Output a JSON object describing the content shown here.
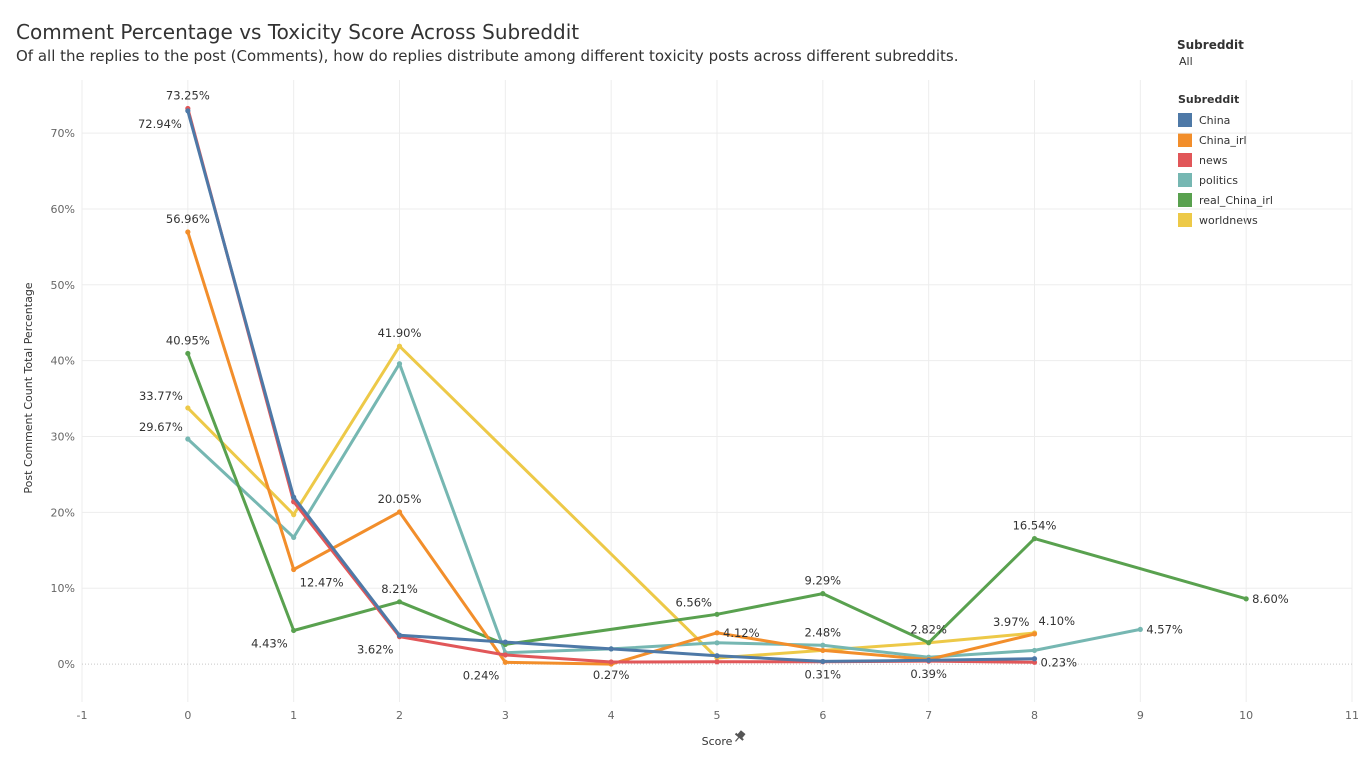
{
  "title": "Comment Percentage vs Toxicity Score Across Subreddit",
  "subtitle": "Of all the replies to the post (Comments), how do replies distribute among different toxicity posts across different subreddits.",
  "filter": {
    "title": "Subreddit",
    "value": "All"
  },
  "legend": {
    "title": "Subreddit",
    "items": [
      {
        "label": "China",
        "color": "#4e79a7"
      },
      {
        "label": "China_irl",
        "color": "#f28e2b"
      },
      {
        "label": "news",
        "color": "#e15759"
      },
      {
        "label": "politics",
        "color": "#76b7b2"
      },
      {
        "label": "real_China_irl",
        "color": "#59a14f"
      },
      {
        "label": "worldnews",
        "color": "#edc948"
      }
    ]
  },
  "chart_data": {
    "type": "line",
    "xlabel": "Score",
    "ylabel": "Post Comment Count Total Percentage",
    "xlim": [
      -1,
      11
    ],
    "ylim": [
      -5,
      77
    ],
    "x_ticks": [
      -1,
      0,
      1,
      2,
      3,
      4,
      5,
      6,
      7,
      8,
      9,
      10,
      11
    ],
    "y_ticks": [
      0,
      10,
      20,
      30,
      40,
      50,
      60,
      70
    ],
    "y_tick_labels": [
      "0%",
      "10%",
      "20%",
      "30%",
      "40%",
      "50%",
      "60%",
      "70%"
    ],
    "grid": true,
    "legend_position": "top-right",
    "series": [
      {
        "name": "worldnews",
        "color": "#edc948",
        "points": [
          [
            0,
            33.77
          ],
          [
            1,
            19.7
          ],
          [
            2,
            41.9
          ],
          [
            5,
            0.8
          ],
          [
            7,
            2.82
          ],
          [
            8,
            4.1
          ]
        ]
      },
      {
        "name": "politics",
        "color": "#76b7b2",
        "points": [
          [
            0,
            29.67
          ],
          [
            1,
            16.7
          ],
          [
            2,
            39.6
          ],
          [
            3,
            1.5
          ],
          [
            4,
            2.0
          ],
          [
            5,
            2.8
          ],
          [
            6,
            2.48
          ],
          [
            7,
            0.9
          ],
          [
            8,
            1.8
          ],
          [
            9,
            4.57
          ]
        ]
      },
      {
        "name": "real_China_irl",
        "color": "#59a14f",
        "points": [
          [
            0,
            40.95
          ],
          [
            1,
            4.43
          ],
          [
            2,
            8.21
          ],
          [
            3,
            2.6
          ],
          [
            5,
            6.56
          ],
          [
            6,
            9.29
          ],
          [
            7,
            2.82
          ],
          [
            8,
            16.54
          ],
          [
            10,
            8.6
          ]
        ]
      },
      {
        "name": "China_irl",
        "color": "#f28e2b",
        "points": [
          [
            0,
            56.96
          ],
          [
            1,
            12.47
          ],
          [
            2,
            20.05
          ],
          [
            3,
            0.24
          ],
          [
            4,
            0.0
          ],
          [
            5,
            4.12
          ],
          [
            6,
            1.8
          ],
          [
            7,
            0.6
          ],
          [
            8,
            3.97
          ]
        ]
      },
      {
        "name": "news",
        "color": "#e15759",
        "points": [
          [
            0,
            73.25
          ],
          [
            1,
            21.4
          ],
          [
            2,
            3.62
          ],
          [
            3,
            1.2
          ],
          [
            4,
            0.27
          ],
          [
            5,
            0.3
          ],
          [
            6,
            0.31
          ],
          [
            7,
            0.39
          ],
          [
            8,
            0.23
          ]
        ]
      },
      {
        "name": "China",
        "color": "#4e79a7",
        "points": [
          [
            0,
            72.94
          ],
          [
            1,
            22.0
          ],
          [
            2,
            3.8
          ],
          [
            3,
            2.9
          ],
          [
            4,
            2.0
          ],
          [
            5,
            1.1
          ],
          [
            6,
            0.35
          ],
          [
            7,
            0.5
          ],
          [
            8,
            0.7
          ]
        ]
      }
    ],
    "annotations": [
      {
        "text": "73.25%",
        "x": 0,
        "y": 73.25,
        "position": "above"
      },
      {
        "text": "72.94%",
        "x": 0,
        "y": 72.94,
        "position": "below-left"
      },
      {
        "text": "56.96%",
        "x": 0,
        "y": 56.96,
        "position": "above"
      },
      {
        "text": "40.95%",
        "x": 0,
        "y": 40.95,
        "position": "above"
      },
      {
        "text": "33.77%",
        "x": 0,
        "y": 33.77,
        "position": "above-left"
      },
      {
        "text": "29.67%",
        "x": 0,
        "y": 29.67,
        "position": "above-left"
      },
      {
        "text": "12.47%",
        "x": 1,
        "y": 12.47,
        "position": "below-right"
      },
      {
        "text": "4.43%",
        "x": 1,
        "y": 4.43,
        "position": "below-left"
      },
      {
        "text": "41.90%",
        "x": 2,
        "y": 41.9,
        "position": "above"
      },
      {
        "text": "20.05%",
        "x": 2,
        "y": 20.05,
        "position": "above"
      },
      {
        "text": "8.21%",
        "x": 2,
        "y": 8.21,
        "position": "above"
      },
      {
        "text": "3.62%",
        "x": 2,
        "y": 3.62,
        "position": "below-left"
      },
      {
        "text": "0.24%",
        "x": 3,
        "y": 0.24,
        "position": "below-left"
      },
      {
        "text": "0.27%",
        "x": 4,
        "y": 0.27,
        "position": "below"
      },
      {
        "text": "6.56%",
        "x": 5,
        "y": 6.56,
        "position": "above-left"
      },
      {
        "text": "4.12%",
        "x": 5,
        "y": 4.12,
        "position": "right"
      },
      {
        "text": "9.29%",
        "x": 6,
        "y": 9.29,
        "position": "above"
      },
      {
        "text": "2.48%",
        "x": 6,
        "y": 2.48,
        "position": "above"
      },
      {
        "text": "0.31%",
        "x": 6,
        "y": 0.31,
        "position": "below"
      },
      {
        "text": "2.82%",
        "x": 7,
        "y": 2.82,
        "position": "above"
      },
      {
        "text": "0.39%",
        "x": 7,
        "y": 0.39,
        "position": "below"
      },
      {
        "text": "16.54%",
        "x": 8,
        "y": 16.54,
        "position": "above"
      },
      {
        "text": "3.97%",
        "x": 8,
        "y": 3.97,
        "position": "above-left"
      },
      {
        "text": "4.10%",
        "x": 8,
        "y": 4.1,
        "position": "above-right"
      },
      {
        "text": "0.23%",
        "x": 8,
        "y": 0.23,
        "position": "right"
      },
      {
        "text": "4.57%",
        "x": 9,
        "y": 4.57,
        "position": "right"
      },
      {
        "text": "8.60%",
        "x": 10,
        "y": 8.6,
        "position": "right"
      }
    ]
  }
}
